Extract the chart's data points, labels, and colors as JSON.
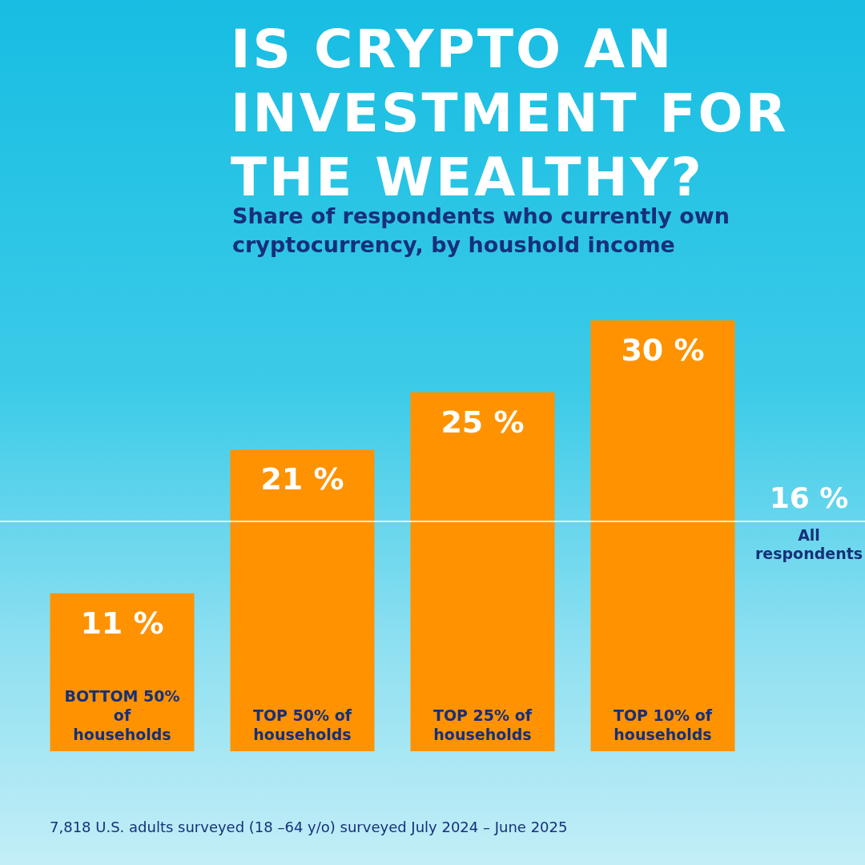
{
  "chart_data": {
    "type": "bar",
    "title": "IS CRYPTO AN INVESTMENT FOR THE WEALTHY?",
    "subtitle": "Share of respondents who currently own cryptocurrency, by houshold income",
    "categories": [
      "BOTTOM 50% of households",
      "TOP 50% of households",
      "TOP 25% of households",
      "TOP 10% of households"
    ],
    "values": [
      11,
      21,
      25,
      30
    ],
    "color": "#ff9200",
    "value_labels": [
      "11 %",
      "21 %",
      "25 %",
      "30 %"
    ],
    "ylim": [
      0,
      30
    ],
    "ref_lines": [
      {
        "axis": "y",
        "value": 16,
        "label": "All respondents",
        "color": "#ffffff"
      }
    ],
    "annotations": [
      {
        "text": "16 %",
        "y": 16
      },
      "7,818 U.S. adults surveyed (18 –64 y/o) surveyed July 2024 – June 2025"
    ]
  }
}
